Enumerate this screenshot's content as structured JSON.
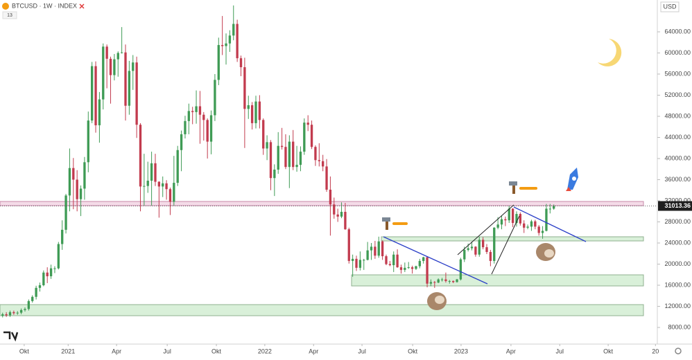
{
  "chart_data": {
    "type": "candlestick",
    "symbol": "BTCUSD · 1W · INDEX",
    "badge": "13",
    "currency": "USD",
    "up_color": "#3f9b55",
    "down_color": "#c23b4e",
    "open": [
      10200,
      10500,
      10300,
      10900,
      10700,
      10800,
      11300,
      11500,
      13000,
      13800,
      15500,
      16000,
      18400,
      17700,
      19200,
      19200,
      23800,
      26500,
      33000,
      38200,
      36000,
      32300,
      34300,
      39300,
      47200,
      57500,
      46300,
      51200,
      61200,
      58900,
      55800,
      58800,
      60000,
      60100,
      50000,
      56600,
      58200,
      46400,
      34700,
      34800,
      35800,
      39100,
      35600,
      34700,
      35300,
      34200,
      31800,
      35400,
      41600,
      44600,
      47100,
      49000,
      48800,
      49900,
      48300,
      47300,
      43200,
      48200,
      54900,
      61500,
      61300,
      61800,
      63300,
      65500,
      59000,
      57300,
      49400,
      50100,
      46700,
      50800,
      47300,
      41900,
      43100,
      36300,
      37900,
      42400,
      42200,
      38400,
      43200,
      38400,
      38800,
      41300,
      46800,
      46400,
      42200,
      39700,
      39500,
      38500,
      34100,
      31300,
      29400,
      29000,
      29900,
      26600,
      20600,
      21000,
      19300,
      20800,
      20800,
      22600,
      23300,
      21600,
      24300,
      21500,
      20000,
      19800,
      21800,
      19400,
      18900,
      19300,
      19400,
      19100,
      19600,
      20600,
      21300,
      16300,
      16600,
      16500,
      17100,
      17100,
      16800,
      16800,
      16600,
      17100,
      20900,
      22700,
      23000,
      23300,
      21800,
      24600,
      23200,
      22300,
      20600,
      26900,
      27500,
      28500,
      28300,
      30500,
      27800,
      29500,
      27700,
      26900,
      27100,
      28100,
      27100,
      25900,
      26300,
      30500,
      30500
    ],
    "high": [
      10800,
      10900,
      11200,
      11200,
      11100,
      11600,
      11800,
      13300,
      14100,
      15900,
      16500,
      18800,
      19400,
      19900,
      19600,
      24200,
      28300,
      33300,
      41900,
      40100,
      37800,
      34900,
      40300,
      48900,
      58300,
      58400,
      52600,
      61800,
      61600,
      59300,
      59800,
      60300,
      64900,
      61600,
      58500,
      59600,
      59300,
      46700,
      40900,
      39400,
      41300,
      40900,
      35700,
      36600,
      35900,
      34500,
      40500,
      42400,
      45300,
      48100,
      50400,
      49800,
      52900,
      52800,
      48800,
      47600,
      49100,
      56000,
      62900,
      67000,
      63700,
      64300,
      69000,
      66300,
      59500,
      59100,
      51900,
      50700,
      51900,
      52000,
      47600,
      44400,
      43500,
      38900,
      45000,
      45800,
      44600,
      44400,
      45400,
      42400,
      42300,
      47600,
      48200,
      47200,
      42500,
      42900,
      40700,
      39900,
      36600,
      32600,
      30500,
      31700,
      31600,
      26900,
      21800,
      21600,
      22400,
      21000,
      24200,
      24000,
      24400,
      25200,
      24500,
      21800,
      20600,
      22400,
      22800,
      19900,
      20300,
      20400,
      19700,
      19700,
      21000,
      21400,
      21400,
      17100,
      16800,
      17300,
      17400,
      18400,
      17000,
      16900,
      17200,
      21200,
      23300,
      23900,
      24200,
      23400,
      25200,
      25100,
      23800,
      22700,
      27000,
      28900,
      29200,
      29000,
      31000,
      30600,
      30000,
      29800,
      28300,
      27500,
      28400,
      28400,
      27400,
      27200,
      31400,
      31400,
      31300
    ],
    "low": [
      9900,
      10000,
      10000,
      10400,
      10400,
      10500,
      11000,
      11200,
      12700,
      13300,
      14800,
      15800,
      16400,
      17200,
      18300,
      19000,
      22700,
      25800,
      30000,
      30400,
      30000,
      29100,
      32200,
      37400,
      46700,
      44900,
      43000,
      49300,
      53300,
      50400,
      54800,
      55500,
      59900,
      47200,
      48300,
      53000,
      43900,
      30000,
      31100,
      33500,
      31100,
      34800,
      28800,
      32700,
      32200,
      29300,
      31100,
      34800,
      37600,
      43800,
      44600,
      46500,
      46600,
      42800,
      43400,
      40000,
      40800,
      47100,
      53900,
      59600,
      57800,
      60200,
      62400,
      58300,
      55600,
      42000,
      47500,
      45500,
      45700,
      45700,
      40700,
      39700,
      34000,
      32900,
      37100,
      41700,
      38000,
      34400,
      37800,
      37500,
      37600,
      40700,
      45200,
      41800,
      38600,
      38500,
      37600,
      33700,
      25400,
      28600,
      28000,
      28700,
      26500,
      20100,
      17600,
      18700,
      18800,
      18900,
      20700,
      20800,
      21000,
      21200,
      20800,
      19800,
      19600,
      18500,
      19300,
      18200,
      18500,
      19100,
      18200,
      18900,
      19200,
      20100,
      15600,
      15800,
      15500,
      16400,
      16700,
      16500,
      16300,
      16400,
      16500,
      16900,
      20400,
      22400,
      22600,
      21400,
      21400,
      22800,
      21900,
      19600,
      20100,
      26600,
      26600,
      27200,
      27800,
      27000,
      27100,
      27300,
      25900,
      26600,
      26300,
      26600,
      25400,
      24800,
      26200,
      29600,
      30300
    ],
    "close": [
      10500,
      10300,
      10900,
      10700,
      10800,
      11300,
      11500,
      13000,
      13800,
      15500,
      16000,
      18400,
      17700,
      19200,
      19200,
      23800,
      26500,
      33000,
      38200,
      36000,
      32300,
      34300,
      39300,
      47200,
      57500,
      46300,
      51200,
      61200,
      58900,
      55800,
      58800,
      60000,
      60100,
      50000,
      56600,
      58200,
      46400,
      34700,
      34800,
      35800,
      39100,
      35600,
      34700,
      35300,
      34200,
      31800,
      35400,
      41600,
      44600,
      47100,
      49000,
      48800,
      49900,
      48300,
      47300,
      43200,
      48200,
      54900,
      61500,
      61300,
      61800,
      63300,
      65500,
      59000,
      57300,
      49400,
      50100,
      46700,
      50800,
      47300,
      41900,
      43100,
      36300,
      37900,
      42400,
      42200,
      38400,
      43200,
      38400,
      38800,
      41300,
      46800,
      46400,
      42200,
      39700,
      39500,
      38500,
      34100,
      31300,
      29400,
      29000,
      29900,
      26600,
      20600,
      21000,
      19300,
      20800,
      20800,
      22600,
      23300,
      21600,
      24300,
      21500,
      20000,
      19800,
      21800,
      19400,
      18900,
      19300,
      19400,
      19100,
      19600,
      20600,
      21300,
      16300,
      16600,
      16500,
      17100,
      17100,
      16800,
      16800,
      16600,
      17100,
      20900,
      22700,
      23000,
      23300,
      21800,
      24600,
      23200,
      22300,
      20600,
      26900,
      27500,
      28500,
      28300,
      30500,
      27800,
      29500,
      27700,
      26900,
      27100,
      28100,
      27100,
      25900,
      26300,
      30500,
      30500,
      31013.36
    ],
    "xlim": [
      -0.7,
      175.8
    ],
    "xticks": [
      {
        "value": 5.8,
        "label": "Okt"
      },
      {
        "value": 17.6,
        "label": "2021"
      },
      {
        "value": 30.6,
        "label": "Apr"
      },
      {
        "value": 44.2,
        "label": "Jul"
      },
      {
        "value": 57.4,
        "label": "Okt"
      },
      {
        "value": 70.4,
        "label": "2022"
      },
      {
        "value": 83.5,
        "label": "Apr"
      },
      {
        "value": 96.5,
        "label": "Jul"
      },
      {
        "value": 110.1,
        "label": "Okt"
      },
      {
        "value": 123.1,
        "label": "2023"
      },
      {
        "value": 136.5,
        "label": "Apr"
      },
      {
        "value": 149.6,
        "label": "Jul"
      },
      {
        "value": 162.6,
        "label": "Okt"
      },
      {
        "value": 175.3,
        "label": "20"
      }
    ],
    "ylim": [
      5770,
      70030
    ],
    "yticks": [
      {
        "value": 8000,
        "label": "8000.00"
      },
      {
        "value": 12000,
        "label": "12000.00"
      },
      {
        "value": 16000,
        "label": "16000.00"
      },
      {
        "value": 20000,
        "label": "20000.00"
      },
      {
        "value": 24000,
        "label": "24000.00"
      },
      {
        "value": 28000,
        "label": "28000.00"
      },
      {
        "value": 32000,
        "label": "32000.00"
      },
      {
        "value": 36000,
        "label": "36000.00"
      },
      {
        "value": 40000,
        "label": "40000.00"
      },
      {
        "value": 44000,
        "label": "44000.00"
      },
      {
        "value": 48000,
        "label": "48000.00"
      },
      {
        "value": 52000,
        "label": "52000.00"
      },
      {
        "value": 56000,
        "label": "56000.00"
      },
      {
        "value": 60000,
        "label": "60000.00"
      },
      {
        "value": 64000,
        "label": "64000.00"
      }
    ]
  }
}
